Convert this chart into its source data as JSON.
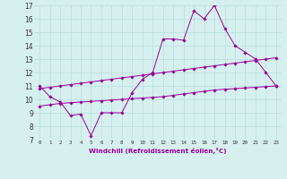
{
  "xlabel": "Windchill (Refroidissement éolien,°C)",
  "background_color": "#d6f0f0",
  "grid_color": "#b8dede",
  "line_color": "#990099",
  "xmin": -0.5,
  "xmax": 23.5,
  "ymin": 7,
  "ymax": 17,
  "yticks": [
    7,
    8,
    9,
    10,
    11,
    12,
    13,
    14,
    15,
    16,
    17
  ],
  "xticks": [
    0,
    1,
    2,
    3,
    4,
    5,
    6,
    7,
    8,
    9,
    10,
    11,
    12,
    13,
    14,
    15,
    16,
    17,
    18,
    19,
    20,
    21,
    22,
    23
  ],
  "series1": [
    11.0,
    10.2,
    9.8,
    8.8,
    8.9,
    7.3,
    9.0,
    9.0,
    9.0,
    10.5,
    11.5,
    12.0,
    14.5,
    14.5,
    14.4,
    16.6,
    16.0,
    17.0,
    15.3,
    14.0,
    13.5,
    13.0,
    12.0,
    11.0
  ],
  "series2": [
    10.8,
    10.9,
    11.0,
    11.1,
    11.2,
    11.3,
    11.4,
    11.5,
    11.6,
    11.7,
    11.8,
    11.9,
    12.0,
    12.1,
    12.2,
    12.3,
    12.4,
    12.5,
    12.6,
    12.7,
    12.8,
    12.9,
    13.0,
    13.1
  ],
  "series3": [
    9.5,
    9.6,
    9.7,
    9.75,
    9.8,
    9.85,
    9.9,
    9.95,
    10.0,
    10.05,
    10.1,
    10.15,
    10.2,
    10.3,
    10.4,
    10.5,
    10.6,
    10.7,
    10.75,
    10.8,
    10.85,
    10.9,
    10.95,
    11.0
  ]
}
